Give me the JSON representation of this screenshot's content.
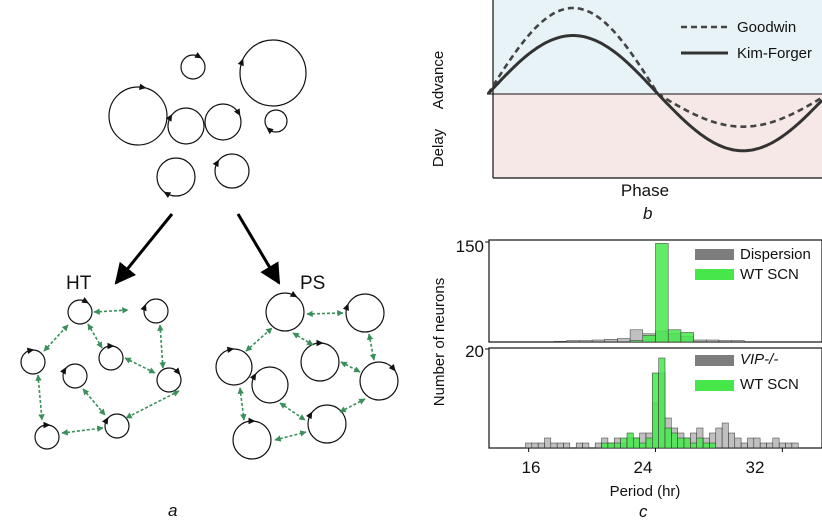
{
  "panel_a": {
    "caption": "a",
    "left_label": "HT",
    "right_label": "PS",
    "arrow_color": "#3a8f5a"
  },
  "chart_data": [
    {
      "panel": "b",
      "type": "line",
      "caption": "b",
      "xlabel": "Phase",
      "ylabel_top": "Advance",
      "ylabel_bottom": "Delay",
      "advance_color": "#e8f3f7",
      "delay_color": "#f7e8e8",
      "series": [
        {
          "name": "Goodwin",
          "style": "dashed",
          "amplitude_adv": 1.0,
          "amplitude_del": 0.38
        },
        {
          "name": "Kim-Forger",
          "style": "solid",
          "amplitude_adv": 0.68,
          "amplitude_del": 0.66
        }
      ]
    },
    {
      "panel": "c-top",
      "type": "bar",
      "ylabel": "Number of neurons",
      "yticks": [
        "150"
      ],
      "ylim": [
        0,
        150
      ],
      "xlim": [
        13.5,
        34.5
      ],
      "bin_width": 0.8,
      "series": [
        {
          "name": "Dispersion",
          "color": "#8c8c8c",
          "x": [
            17.2,
            18.0,
            18.8,
            19.6,
            20.4,
            21.2,
            22.0,
            22.8,
            23.6,
            24.4,
            25.2,
            26.0,
            26.8,
            27.6,
            28.4,
            29.2
          ],
          "values": [
            0,
            1,
            2,
            2,
            3,
            4,
            5,
            18,
            12,
            16,
            12,
            8,
            3,
            3,
            2,
            2
          ]
        },
        {
          "name": "WT SCN",
          "color": "#47e74c",
          "x": [
            22.8,
            23.6,
            24.4,
            25.2,
            26.0
          ],
          "values": [
            2,
            10,
            145,
            18,
            14
          ]
        }
      ]
    },
    {
      "panel": "c-bottom",
      "type": "bar",
      "caption": "c",
      "xlabel": "Period (hr)",
      "ylabel": "Number of neurons",
      "yticks": [
        "20"
      ],
      "xticks": [
        "16",
        "24",
        "32"
      ],
      "ylim": [
        0,
        20
      ],
      "xlim": [
        13.5,
        34.5
      ],
      "bin_width": 0.4,
      "series": [
        {
          "name": "VIP-/-",
          "color": "#8c8c8c",
          "legend_italic": true,
          "x": [
            16.0,
            16.4,
            16.8,
            17.2,
            17.6,
            18.0,
            18.4,
            18.8,
            19.2,
            19.6,
            20.0,
            20.4,
            20.8,
            21.2,
            21.6,
            22.0,
            22.4,
            22.8,
            23.2,
            23.6,
            24.0,
            24.4,
            24.8,
            25.2,
            25.6,
            26.0,
            26.4,
            26.8,
            27.2,
            27.6,
            28.0,
            28.4,
            28.8,
            29.2,
            29.6,
            30.0,
            30.4,
            30.8,
            31.2,
            31.6,
            32.0,
            32.4,
            32.8
          ],
          "values": [
            1,
            1,
            1,
            2,
            1,
            1,
            1,
            0,
            1,
            1,
            0,
            1,
            2,
            1,
            2,
            1,
            2,
            2,
            3,
            3,
            9,
            15,
            6,
            4,
            3,
            2,
            3,
            4,
            2,
            3,
            4,
            5,
            3,
            2,
            1,
            2,
            2,
            1,
            1,
            2,
            1,
            1,
            1
          ]
        },
        {
          "name": "WT SCN",
          "color": "#47e74c",
          "x": [
            20.8,
            21.2,
            21.6,
            22.0,
            22.4,
            22.8,
            23.2,
            23.6,
            24.0,
            24.4,
            24.8,
            25.2,
            25.6,
            26.0,
            26.4,
            26.8,
            27.2,
            27.6
          ],
          "values": [
            1,
            1,
            1,
            2,
            3,
            2,
            1,
            2,
            15,
            18,
            4,
            3,
            2,
            2,
            1,
            2,
            1,
            1
          ]
        }
      ]
    }
  ]
}
